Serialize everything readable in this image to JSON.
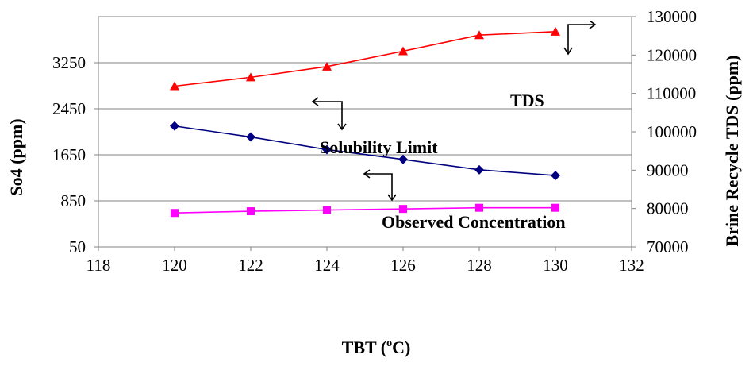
{
  "chart_data": {
    "type": "line",
    "xlabel": "TBT (",
    "xlabel_sup": "o",
    "xlabel_unit": "C)",
    "ylabel_left": "So4 (ppm)",
    "ylabel_right": "Brine Recycle TDS (ppm)",
    "xlim": [
      118,
      132
    ],
    "ylim_left": [
      50,
      4050
    ],
    "ylim_right": [
      70000,
      130000
    ],
    "x_ticks": [
      "118",
      "120",
      "122",
      "124",
      "126",
      "128",
      "130",
      "132"
    ],
    "y_left_ticks": [
      "50",
      "850",
      "1650",
      "2450",
      "3250"
    ],
    "y_right_ticks": [
      "70000",
      "80000",
      "90000",
      "100000",
      "110000",
      "120000",
      "130000"
    ],
    "grid": "horizontal",
    "series": [
      {
        "name": "TDS",
        "axis": "right",
        "color": "#ff0000",
        "marker": "triangle",
        "x": [
          120,
          122,
          124,
          126,
          128,
          130
        ],
        "values": [
          111900,
          114200,
          117000,
          121000,
          125200,
          126100
        ]
      },
      {
        "name": "Solubility Limit",
        "axis": "left",
        "color": "#000080",
        "marker": "diamond",
        "x": [
          120,
          122,
          124,
          126,
          128,
          130
        ],
        "values": [
          2150,
          1960,
          1740,
          1570,
          1390,
          1290
        ]
      },
      {
        "name": "Observed Concentration",
        "axis": "left",
        "color": "#ff00ff",
        "marker": "square",
        "x": [
          120,
          122,
          124,
          126,
          128,
          130
        ],
        "values": [
          640,
          670,
          690,
          710,
          730,
          730
        ]
      }
    ]
  }
}
